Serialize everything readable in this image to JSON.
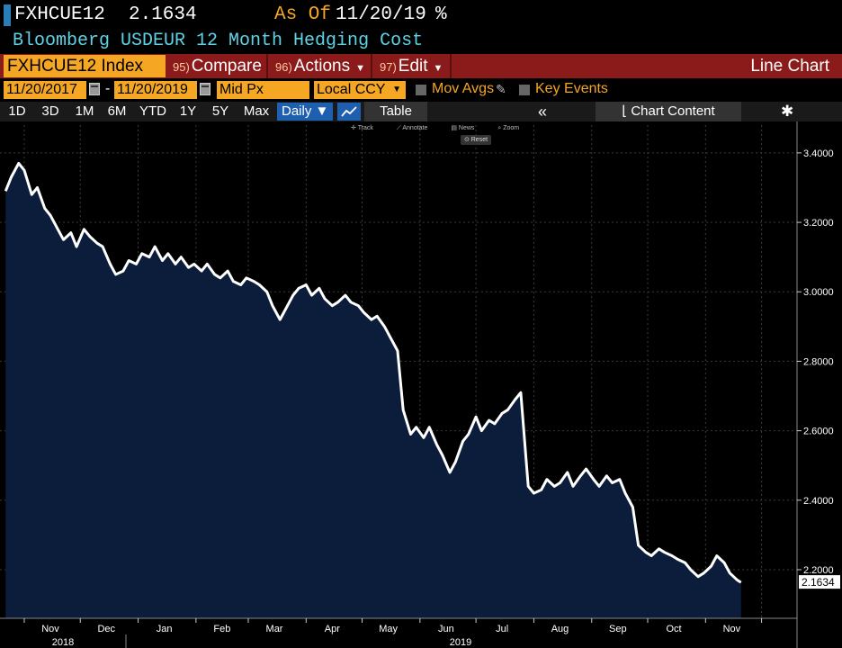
{
  "header": {
    "ticker": "FXHCUE12",
    "price": "2.1634",
    "as_of_label": "As Of",
    "as_of_date": "11/20/19",
    "unit": "%",
    "description": "Bloomberg USDEUR 12 Month Hedging Cost"
  },
  "toolbar": {
    "index": "FXHCUE12 Index",
    "compare_num": "95)",
    "compare": "Compare",
    "actions_num": "96)",
    "actions": "Actions",
    "edit_num": "97)",
    "edit": "Edit",
    "chart_type": "Line Chart"
  },
  "range": {
    "start": "11/20/2017",
    "dash": "-",
    "end": "11/20/2019",
    "price_type": "Mid Px",
    "currency": "Local CCY",
    "mov_avgs": "Mov Avgs",
    "key_events": "Key Events"
  },
  "periods": [
    "1D",
    "3D",
    "1M",
    "6M",
    "YTD",
    "1Y",
    "5Y",
    "Max"
  ],
  "frequency": "Daily ▼",
  "table_label": "Table",
  "chart_content_label": "Chart Content",
  "tools": {
    "track": "Track",
    "annotate": "Annotate",
    "news": "News",
    "zoom": "Zoom",
    "reset": "Reset"
  },
  "colors": {
    "line": "#ffffff",
    "area": "#0b1d3a",
    "accent": "#f5a623",
    "toolbar": "#8b1a1a"
  },
  "chart_data": {
    "type": "area",
    "title": "",
    "ylim": [
      2.06,
      3.48
    ],
    "y_ticks": [
      "3.4000",
      "3.2000",
      "3.0000",
      "2.8000",
      "2.6000",
      "2.4000",
      "2.2000"
    ],
    "x_month_labels": [
      "Nov",
      "Dec",
      "Jan",
      "Feb",
      "Mar",
      "Apr",
      "May",
      "Jun",
      "Jul",
      "Aug",
      "Sep",
      "Oct",
      "Nov"
    ],
    "x_year_labels": [
      "2018",
      "2019"
    ],
    "last_value_label": "2.1634",
    "series": [
      {
        "x": [
          "2018-10-22",
          "2018-10-25",
          "2018-10-29",
          "2018-11-01",
          "2018-11-05",
          "2018-11-08",
          "2018-11-12",
          "2018-11-15",
          "2018-11-19",
          "2018-11-22",
          "2018-11-26",
          "2018-11-29",
          "2018-12-03",
          "2018-12-06",
          "2018-12-10",
          "2018-12-13",
          "2018-12-17",
          "2018-12-20",
          "2018-12-24",
          "2018-12-27",
          "2018-12-31",
          "2019-01-03",
          "2019-01-07",
          "2019-01-10",
          "2019-01-14",
          "2019-01-17",
          "2019-01-21",
          "2019-01-24",
          "2019-01-28",
          "2019-01-31",
          "2019-02-04",
          "2019-02-07",
          "2019-02-11",
          "2019-02-14",
          "2019-02-18",
          "2019-02-21",
          "2019-02-25",
          "2019-02-28",
          "2019-03-04",
          "2019-03-07",
          "2019-03-11",
          "2019-03-14",
          "2019-03-18",
          "2019-03-21",
          "2019-03-25",
          "2019-03-28",
          "2019-04-01",
          "2019-04-04",
          "2019-04-08",
          "2019-04-11",
          "2019-04-15",
          "2019-04-18",
          "2019-04-22",
          "2019-04-25",
          "2019-04-29",
          "2019-05-02",
          "2019-05-06",
          "2019-05-09",
          "2019-05-13",
          "2019-05-16",
          "2019-05-20",
          "2019-05-23",
          "2019-05-27",
          "2019-05-30",
          "2019-06-03",
          "2019-06-06",
          "2019-06-10",
          "2019-06-13",
          "2019-06-17",
          "2019-06-20",
          "2019-06-24",
          "2019-06-27",
          "2019-07-01",
          "2019-07-04",
          "2019-07-08",
          "2019-07-11",
          "2019-07-15",
          "2019-07-18",
          "2019-07-22",
          "2019-07-25",
          "2019-07-29",
          "2019-08-01",
          "2019-08-05",
          "2019-08-08",
          "2019-08-12",
          "2019-08-15",
          "2019-08-19",
          "2019-08-22",
          "2019-08-26",
          "2019-08-29",
          "2019-09-02",
          "2019-09-05",
          "2019-09-09",
          "2019-09-12",
          "2019-09-16",
          "2019-09-19",
          "2019-09-23",
          "2019-09-26",
          "2019-09-30",
          "2019-10-03",
          "2019-10-07",
          "2019-10-10",
          "2019-10-14",
          "2019-10-17",
          "2019-10-21",
          "2019-10-24",
          "2019-10-28",
          "2019-10-31",
          "2019-11-04",
          "2019-11-07",
          "2019-11-11",
          "2019-11-14",
          "2019-11-18",
          "2019-11-20"
        ],
        "y": [
          3.29,
          3.33,
          3.37,
          3.35,
          3.28,
          3.3,
          3.24,
          3.22,
          3.18,
          3.15,
          3.17,
          3.13,
          3.18,
          3.16,
          3.14,
          3.13,
          3.08,
          3.05,
          3.06,
          3.09,
          3.08,
          3.11,
          3.1,
          3.13,
          3.09,
          3.11,
          3.08,
          3.1,
          3.07,
          3.08,
          3.06,
          3.08,
          3.05,
          3.04,
          3.06,
          3.03,
          3.02,
          3.04,
          3.03,
          3.02,
          3.0,
          2.96,
          2.92,
          2.95,
          2.99,
          3.01,
          3.02,
          2.99,
          3.01,
          2.98,
          2.96,
          2.97,
          2.99,
          2.97,
          2.96,
          2.94,
          2.92,
          2.93,
          2.9,
          2.87,
          2.83,
          2.66,
          2.59,
          2.61,
          2.58,
          2.61,
          2.56,
          2.53,
          2.48,
          2.51,
          2.57,
          2.59,
          2.64,
          2.6,
          2.63,
          2.62,
          2.65,
          2.66,
          2.69,
          2.71,
          2.44,
          2.42,
          2.43,
          2.46,
          2.44,
          2.45,
          2.48,
          2.44,
          2.47,
          2.49,
          2.46,
          2.44,
          2.47,
          2.45,
          2.46,
          2.42,
          2.38,
          2.27,
          2.25,
          2.24,
          2.26,
          2.25,
          2.24,
          2.23,
          2.22,
          2.2,
          2.18,
          2.19,
          2.21,
          2.24,
          2.22,
          2.19,
          2.17,
          2.1634
        ]
      }
    ]
  }
}
